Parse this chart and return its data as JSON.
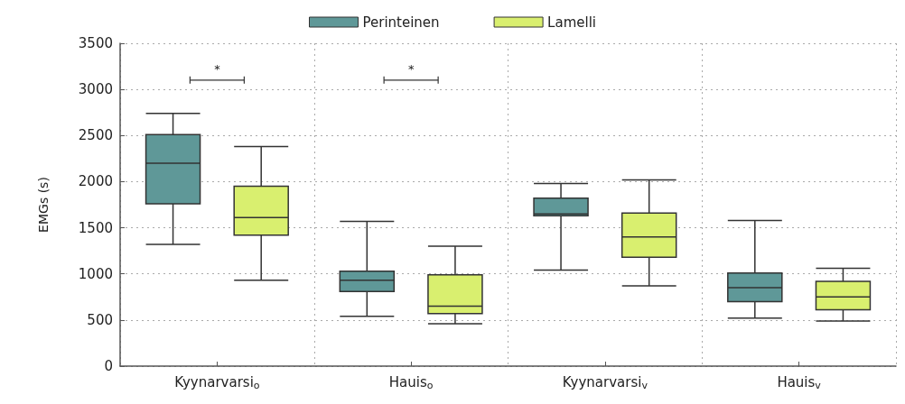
{
  "chart_data": {
    "type": "box",
    "ylabel": "EMGs (s)",
    "categories": [
      "Kyynarvarsi$_{o}$",
      "Hauis$_{o}$",
      "Kyynarvarsi$_{v}$",
      "Hauis$_{v}$"
    ],
    "series": [
      {
        "name": "Perinteinen",
        "color": "#5f9898",
        "boxes": [
          {
            "low": 1320,
            "q1": 1760,
            "median": 2200,
            "q3": 2510,
            "high": 2740
          },
          {
            "low": 540,
            "q1": 810,
            "median": 930,
            "q3": 1030,
            "high": 1570
          },
          {
            "low": 1040,
            "q1": 1630,
            "median": 1650,
            "q3": 1820,
            "high": 1980
          },
          {
            "low": 520,
            "q1": 700,
            "median": 850,
            "q3": 1010,
            "high": 1580
          }
        ]
      },
      {
        "name": "Lamelli",
        "color": "#d9ef6f",
        "boxes": [
          {
            "low": 930,
            "q1": 1420,
            "median": 1610,
            "q3": 1950,
            "high": 2380
          },
          {
            "low": 460,
            "q1": 570,
            "median": 650,
            "q3": 990,
            "high": 1300
          },
          {
            "low": 870,
            "q1": 1180,
            "median": 1400,
            "q3": 1660,
            "high": 2020
          },
          {
            "low": 490,
            "q1": 610,
            "median": 750,
            "q3": 920,
            "high": 1060
          }
        ]
      }
    ],
    "ylim": [
      0,
      3500
    ],
    "yticks": [
      0,
      500,
      1000,
      1500,
      2000,
      2500,
      3000,
      3500
    ],
    "grid": true,
    "legend": "top",
    "annotations": [
      "*",
      "*"
    ]
  }
}
